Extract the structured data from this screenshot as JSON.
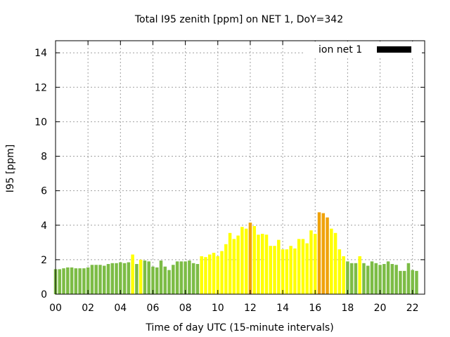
{
  "chart_data": {
    "type": "bar",
    "title": "Total I95 zenith [ppm] on NET 1, DoY=342",
    "xlabel": "Time of day UTC (15-minute intervals)",
    "ylabel": "I95 [ppm]",
    "ylim": [
      0,
      14.7
    ],
    "xlim": [
      0,
      22.75
    ],
    "yticks": [
      0,
      2,
      4,
      6,
      8,
      10,
      12,
      14
    ],
    "xticks": [
      0,
      2,
      4,
      6,
      8,
      10,
      12,
      14,
      16,
      18,
      20,
      22
    ],
    "xtick_labels": [
      "00",
      "02",
      "04",
      "06",
      "08",
      "10",
      "12",
      "14",
      "16",
      "18",
      "20",
      "22"
    ],
    "grid": true,
    "legend_position": "top-right",
    "series": [
      {
        "name": "ion net 1",
        "color": "#000000",
        "interval_hours": 0.25,
        "values": [
          1.45,
          1.45,
          1.5,
          1.55,
          1.55,
          1.5,
          1.5,
          1.5,
          1.55,
          1.7,
          1.7,
          1.7,
          1.65,
          1.75,
          1.8,
          1.8,
          1.85,
          1.8,
          1.85,
          2.3,
          1.75,
          2.0,
          1.95,
          1.9,
          1.6,
          1.55,
          1.95,
          1.6,
          1.4,
          1.7,
          1.9,
          1.9,
          1.9,
          1.95,
          1.8,
          1.75,
          2.2,
          2.15,
          2.3,
          2.4,
          2.2,
          2.5,
          2.9,
          3.55,
          3.2,
          3.4,
          3.9,
          3.8,
          4.15,
          3.95,
          3.45,
          3.5,
          3.45,
          2.8,
          2.8,
          3.15,
          2.6,
          2.6,
          2.8,
          2.65,
          3.2,
          3.2,
          2.95,
          3.7,
          3.5,
          4.75,
          4.7,
          4.45,
          3.8,
          3.55,
          2.6,
          2.2,
          1.9,
          1.8,
          1.8,
          2.2,
          1.8,
          1.65,
          1.9,
          1.8,
          1.7,
          1.75,
          1.9,
          1.75,
          1.7,
          1.35,
          1.35,
          1.8,
          1.4,
          1.35
        ]
      }
    ]
  },
  "colors": {
    "low": "#7cbc45",
    "medium": "#ffff00",
    "high": "#f0a20a",
    "grid": "#a0a0a0",
    "legend_swatch": "#000000"
  }
}
